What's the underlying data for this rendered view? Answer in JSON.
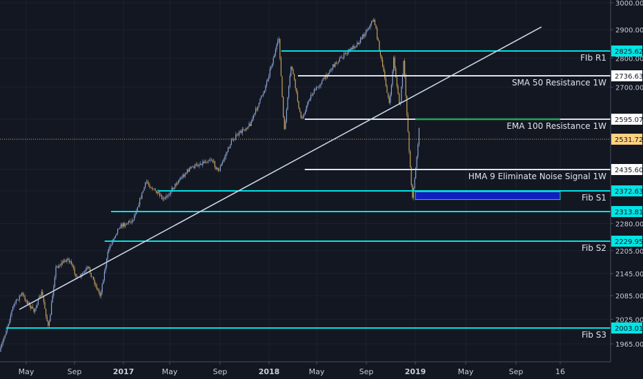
{
  "chart_data": {
    "type": "candlestick",
    "y_axis": {
      "ticks": [
        1965,
        2025,
        2085,
        2145,
        2205,
        2280,
        2372.63,
        2435.6,
        2531.72,
        2595.07,
        2700,
        2800,
        2900,
        3000
      ],
      "tick_labels": [
        "1965.00",
        "2025.00",
        "2085.00",
        "2145.00",
        "2205.00",
        "2280.00",
        "2372.63",
        "2435.60",
        "2531.72",
        "2595.07",
        "2700.00",
        "2800.00",
        "2900.00",
        "3000.00"
      ],
      "range": [
        1920,
        3000
      ]
    },
    "x_axis": {
      "ticks": [
        "2016-05-01",
        "2016-09-01",
        "2017-01-01",
        "2017-05-01",
        "2017-09-01",
        "2018-01-01",
        "2018-05-01",
        "2018-09-01",
        "2019-01-01",
        "2019-05-01",
        "2019-09-01",
        "2019-12-16"
      ],
      "tick_labels": [
        "May",
        "Sep",
        "2017",
        "May",
        "Sep",
        "2018",
        "May",
        "Sep",
        "2019",
        "May",
        "Sep",
        "16"
      ],
      "range": [
        "2016-03-01",
        "2020-02-01"
      ]
    },
    "current_price": {
      "value": 2531.72,
      "label": "2531.72",
      "color": "#ffd280"
    },
    "levels": [
      {
        "name": "Fib R1",
        "label": "FIb R1",
        "value": 2825.62,
        "price_label": "2825.62",
        "color": "#00e5e5",
        "start": "2018-02-01"
      },
      {
        "name": "SMA 50 Resistance 1W",
        "label": "SMA 50 Resistance 1W",
        "value": 2736.63,
        "price_label": "2736.63",
        "color": "#e0e3eb",
        "start": "2018-03-15"
      },
      {
        "name": "EMA 100 Resistance 1W",
        "label": "EMA 100 Resistance 1W",
        "value": 2595.07,
        "price_label": "2595.07",
        "color": "#e0e3eb",
        "start": "2018-04-01",
        "highlight_color": "#22aa55",
        "highlight_start": "2019-01-01",
        "highlight_end": "2019-12-16"
      },
      {
        "name": "HMA 9 Eliminate Noise Signal 1W",
        "label": "HMA 9 Eliminate Noise Signal 1W",
        "value": 2435.6,
        "price_label": "2435.60",
        "color": "#e0e3eb",
        "start": "2018-04-01"
      },
      {
        "name": "Fib S1",
        "label": "Fib S1",
        "value": 2372.63,
        "price_label": "2372.63",
        "color": "#00e5e5",
        "start": "2017-04-01"
      },
      {
        "name": "Level 2313.81",
        "label": "",
        "value": 2313.81,
        "price_label": "2313.81",
        "color": "#00e5e5",
        "start": "2016-12-01"
      },
      {
        "name": "Fib S2",
        "label": "Fib S2",
        "value": 2229.95,
        "price_label": "2229.95",
        "color": "#00e5e5",
        "start": "2016-11-15"
      },
      {
        "name": "Fib S3",
        "label": "Fib S3",
        "value": 2003.01,
        "price_label": "2003.01",
        "color": "#00e5e5",
        "start": "2016-03-15"
      }
    ],
    "trendline": {
      "start": {
        "date": "2016-04-15",
        "value": 2050
      },
      "end": {
        "date": "2019-11-01",
        "value": 2910
      },
      "color": "#c8d6e5"
    },
    "zone": {
      "start": "2019-01-01",
      "end": "2019-12-16",
      "top": 2370,
      "bottom": 2348,
      "fill": "#0f1fbf",
      "border": "#22ccaa"
    },
    "series": [
      {
        "date": "2016-03-01",
        "value": 1950
      },
      {
        "date": "2016-04-01",
        "value": 2060
      },
      {
        "date": "2016-04-20",
        "value": 2090
      },
      {
        "date": "2016-05-20",
        "value": 2045
      },
      {
        "date": "2016-06-10",
        "value": 2095
      },
      {
        "date": "2016-06-27",
        "value": 2000
      },
      {
        "date": "2016-07-15",
        "value": 2160
      },
      {
        "date": "2016-08-15",
        "value": 2185
      },
      {
        "date": "2016-09-10",
        "value": 2130
      },
      {
        "date": "2016-10-05",
        "value": 2160
      },
      {
        "date": "2016-11-04",
        "value": 2085
      },
      {
        "date": "2016-11-25",
        "value": 2210
      },
      {
        "date": "2016-12-20",
        "value": 2270
      },
      {
        "date": "2017-01-25",
        "value": 2290
      },
      {
        "date": "2017-03-01",
        "value": 2400
      },
      {
        "date": "2017-04-15",
        "value": 2345
      },
      {
        "date": "2017-05-20",
        "value": 2400
      },
      {
        "date": "2017-06-20",
        "value": 2440
      },
      {
        "date": "2017-08-10",
        "value": 2470
      },
      {
        "date": "2017-08-28",
        "value": 2430
      },
      {
        "date": "2017-10-01",
        "value": 2530
      },
      {
        "date": "2017-11-15",
        "value": 2580
      },
      {
        "date": "2017-12-20",
        "value": 2690
      },
      {
        "date": "2018-01-26",
        "value": 2870
      },
      {
        "date": "2018-02-08",
        "value": 2550
      },
      {
        "date": "2018-02-26",
        "value": 2780
      },
      {
        "date": "2018-03-23",
        "value": 2590
      },
      {
        "date": "2018-04-15",
        "value": 2670
      },
      {
        "date": "2018-05-15",
        "value": 2720
      },
      {
        "date": "2018-06-15",
        "value": 2780
      },
      {
        "date": "2018-07-15",
        "value": 2820
      },
      {
        "date": "2018-08-15",
        "value": 2860
      },
      {
        "date": "2018-09-20",
        "value": 2940
      },
      {
        "date": "2018-10-10",
        "value": 2780
      },
      {
        "date": "2018-10-29",
        "value": 2640
      },
      {
        "date": "2018-11-08",
        "value": 2800
      },
      {
        "date": "2018-11-23",
        "value": 2630
      },
      {
        "date": "2018-12-03",
        "value": 2790
      },
      {
        "date": "2018-12-24",
        "value": 2350
      },
      {
        "date": "2019-01-03",
        "value": 2450
      },
      {
        "date": "2019-01-11",
        "value": 2580
      }
    ]
  }
}
